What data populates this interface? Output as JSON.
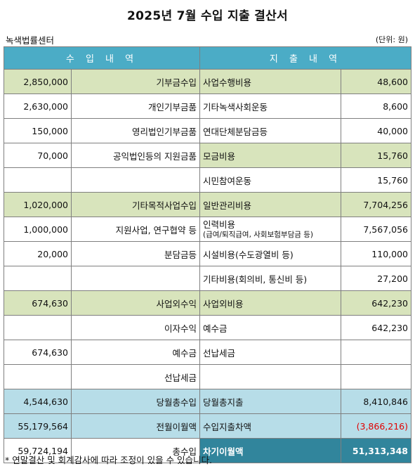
{
  "title": "2025년 7월 수입 지출 결산서",
  "org": "녹색법률센터",
  "unit": "(단위: 원)",
  "headers": {
    "income": "수 입 내 역",
    "expense": "지 출 내 역"
  },
  "rows": [
    {
      "style": "green",
      "in_amt": "2,850,000",
      "in_label": "기부금수입",
      "ex_label": "사업수행비용",
      "ex_sub": "",
      "ex_amt": "48,600"
    },
    {
      "style": "plain",
      "in_amt": "2,630,000",
      "in_label": "개인기부금품",
      "ex_label": "기타녹색사회운동",
      "ex_sub": "",
      "ex_amt": "8,600"
    },
    {
      "style": "plain",
      "in_amt": "150,000",
      "in_label": "영리법인기부금품",
      "ex_label": "연대단체분담금등",
      "ex_sub": "",
      "ex_amt": "40,000"
    },
    {
      "style": "mixed",
      "in_amt": "70,000",
      "in_label": "공익법인등의 지원금품",
      "ex_label": "모금비용",
      "ex_sub": "",
      "ex_amt": "15,760"
    },
    {
      "style": "plain",
      "in_amt": "",
      "in_label": "",
      "ex_label": "시민참여운동",
      "ex_sub": "",
      "ex_amt": "15,760"
    },
    {
      "style": "green",
      "in_amt": "1,020,000",
      "in_label": "기타목적사업수입",
      "ex_label": "일반관리비용",
      "ex_sub": "",
      "ex_amt": "7,704,256"
    },
    {
      "style": "plain",
      "in_amt": "1,000,000",
      "in_label": "지원사업, 연구협약 등",
      "ex_label": "인력비용",
      "ex_sub": "(급여/퇴직급여, 사회보험부담금 등)",
      "ex_amt": "7,567,056"
    },
    {
      "style": "plain",
      "in_amt": "20,000",
      "in_label": "분담금등",
      "ex_label": "시설비용(수도광열비 등)",
      "ex_sub": "",
      "ex_amt": "110,000"
    },
    {
      "style": "plain",
      "in_amt": "",
      "in_label": "",
      "ex_label": "기타비용(회의비, 통신비 등)",
      "ex_sub": "",
      "ex_amt": "27,200"
    },
    {
      "style": "green",
      "in_amt": "674,630",
      "in_label": "사업외수익",
      "ex_label": "사업외비용",
      "ex_sub": "",
      "ex_amt": "642,230"
    },
    {
      "style": "plain",
      "in_amt": "",
      "in_label": "이자수익",
      "ex_label": "예수금",
      "ex_sub": "",
      "ex_amt": "642,230"
    },
    {
      "style": "plain",
      "in_amt": "674,630",
      "in_label": "예수금",
      "ex_label": "선납세금",
      "ex_sub": "",
      "ex_amt": ""
    },
    {
      "style": "plain",
      "in_amt": "",
      "in_label": "선납세금",
      "ex_label": "",
      "ex_sub": "",
      "ex_amt": ""
    },
    {
      "style": "blue",
      "in_amt": "4,544,630",
      "in_label": "당월총수입",
      "ex_label": "당월총지출",
      "ex_sub": "",
      "ex_amt": "8,410,846"
    },
    {
      "style": "blue",
      "in_amt": "55,179,564",
      "in_label": "전월이월액",
      "ex_label": "수입지출차액",
      "ex_sub": "",
      "ex_amt": "(3,866,216)",
      "ex_amt_negative": true
    },
    {
      "style": "dark",
      "in_amt": "59,724,194",
      "in_label": "총수입",
      "ex_label": "차기이월액",
      "ex_sub": "",
      "ex_amt": "51,313,348"
    }
  ],
  "footnote": "* 연말결산 및 회계감사에 따라 조정이 있을 수 있습니다.",
  "colors": {
    "header": "#4bacc6",
    "green": "#d8e4bc",
    "blue": "#b7dde8",
    "dark": "#31859c",
    "negative": "#e00000"
  }
}
